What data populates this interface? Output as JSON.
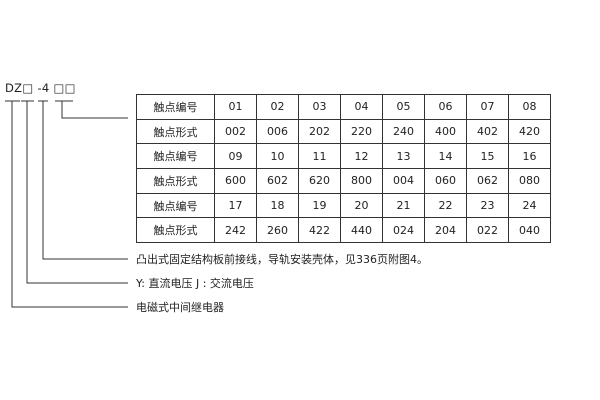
{
  "model_code": "DZ□ -4 □□",
  "table": {
    "rows": [
      {
        "label": "触点编号",
        "cells": [
          "01",
          "02",
          "03",
          "04",
          "05",
          "06",
          "07",
          "08"
        ]
      },
      {
        "label": "触点形式",
        "cells": [
          "002",
          "006",
          "202",
          "220",
          "240",
          "400",
          "402",
          "420"
        ]
      },
      {
        "label": "触点编号",
        "cells": [
          "09",
          "10",
          "11",
          "12",
          "13",
          "14",
          "15",
          "16"
        ]
      },
      {
        "label": "触点形式",
        "cells": [
          "600",
          "602",
          "620",
          "800",
          "004",
          "060",
          "062",
          "080"
        ]
      },
      {
        "label": "触点编号",
        "cells": [
          "17",
          "18",
          "19",
          "20",
          "21",
          "22",
          "23",
          "24"
        ]
      },
      {
        "label": "触点形式",
        "cells": [
          "242",
          "260",
          "422",
          "440",
          "024",
          "204",
          "022",
          "040"
        ]
      }
    ]
  },
  "notes": [
    "凸出式固定结构板前接线，导轨安装壳体，见336页附图4。",
    "Y: 直流电压   J : 交流电压",
    "电磁式中间继电器"
  ]
}
